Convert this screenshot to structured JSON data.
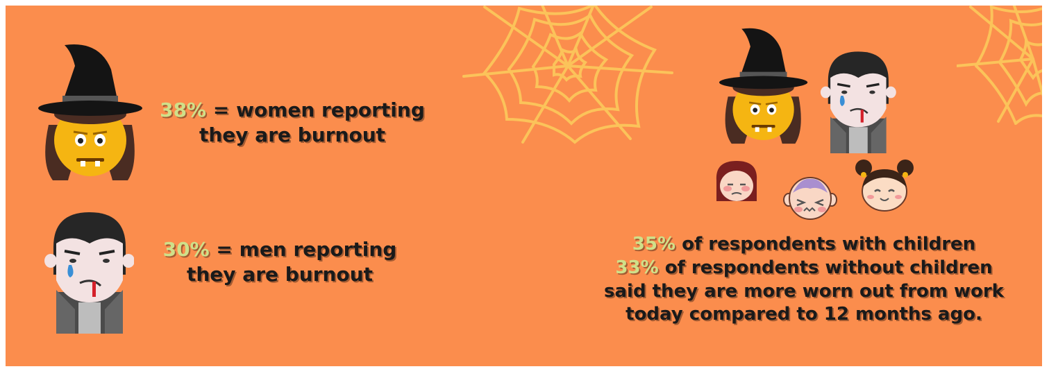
{
  "stats": {
    "women": {
      "percent": "38%",
      "line1": " = women reporting",
      "line2": "they are burnout"
    },
    "men": {
      "percent": "30%",
      "line1": " = men reporting",
      "line2": "they are burnout"
    },
    "with_children": {
      "percent": "35%",
      "text": " of respondents with children"
    },
    "without_children": {
      "percent": "33%",
      "text": " of respondents without children"
    },
    "conclusion_line1": "said they are more worn out from work",
    "conclusion_line2": "today compared to 12 months ago."
  },
  "colors": {
    "background": "#fb8d4d",
    "percent_highlight": "#cfe08a",
    "text": "#1a1a1a",
    "cobweb": "#fbc35a"
  },
  "icons": [
    "witch-icon",
    "vampire-icon",
    "girl-icon",
    "baby-icon",
    "child-icon",
    "cobweb-icon"
  ]
}
